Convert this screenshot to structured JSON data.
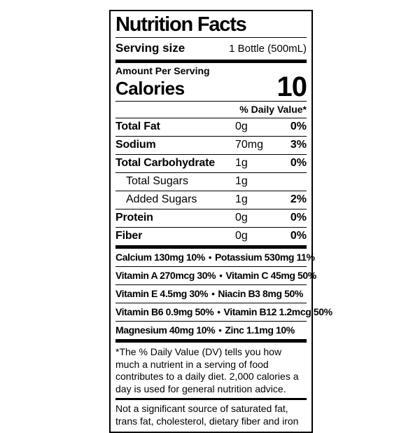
{
  "label": {
    "title": "Nutrition Facts",
    "serving_size": {
      "label": "Serving size",
      "value": "1 Bottle (500mL)"
    },
    "amount_per_serving": "Amount Per Serving",
    "calories": {
      "label": "Calories",
      "value": "10"
    },
    "daily_value_header": "% Daily Value*",
    "bullet": "•",
    "nutrients": [
      {
        "name": "Total Fat",
        "amount": "0g",
        "dv": "0%"
      },
      {
        "name": "Sodium",
        "amount": "70mg",
        "dv": "3%"
      },
      {
        "name": "Total Carbohydrate",
        "amount": "1g",
        "dv": "0%"
      },
      {
        "name": "Total Sugars",
        "amount": "1g",
        "dv": ""
      },
      {
        "name": "Added Sugars",
        "amount": "1g",
        "dv": "2%"
      },
      {
        "name": "Protein",
        "amount": "0g",
        "dv": "0%"
      },
      {
        "name": "Fiber",
        "amount": "0g",
        "dv": "0%"
      }
    ],
    "micronutrients": [
      {
        "left": "Calcium 130mg 10%",
        "right": "Potassium 530mg 11%"
      },
      {
        "left": "Vitamin A 270mcg 30%",
        "right": "Vitamin C 45mg 50%"
      },
      {
        "left": "Vitamin E 4.5mg 30%",
        "right": "Niacin B3 8mg 50%"
      },
      {
        "left": "Vitamin B6 0.9mg 50%",
        "right": "Vitamin B12 1.2mcg 50%"
      },
      {
        "left": "Magnesium 40mg 10%",
        "right": "Zinc 1.1mg 10%"
      }
    ],
    "footnote": "*The % Daily Value (DV) tells you how much a nutrient in a serving of food contributes to a daily diet. 2,000 calories a day is used for general nutrition advice.",
    "disclaimer": "Not a significant source of saturated fat, trans fat, cholesterol, dietary fiber and iron",
    "colors": {
      "ink": "#000000",
      "background": "#ffffff"
    }
  }
}
